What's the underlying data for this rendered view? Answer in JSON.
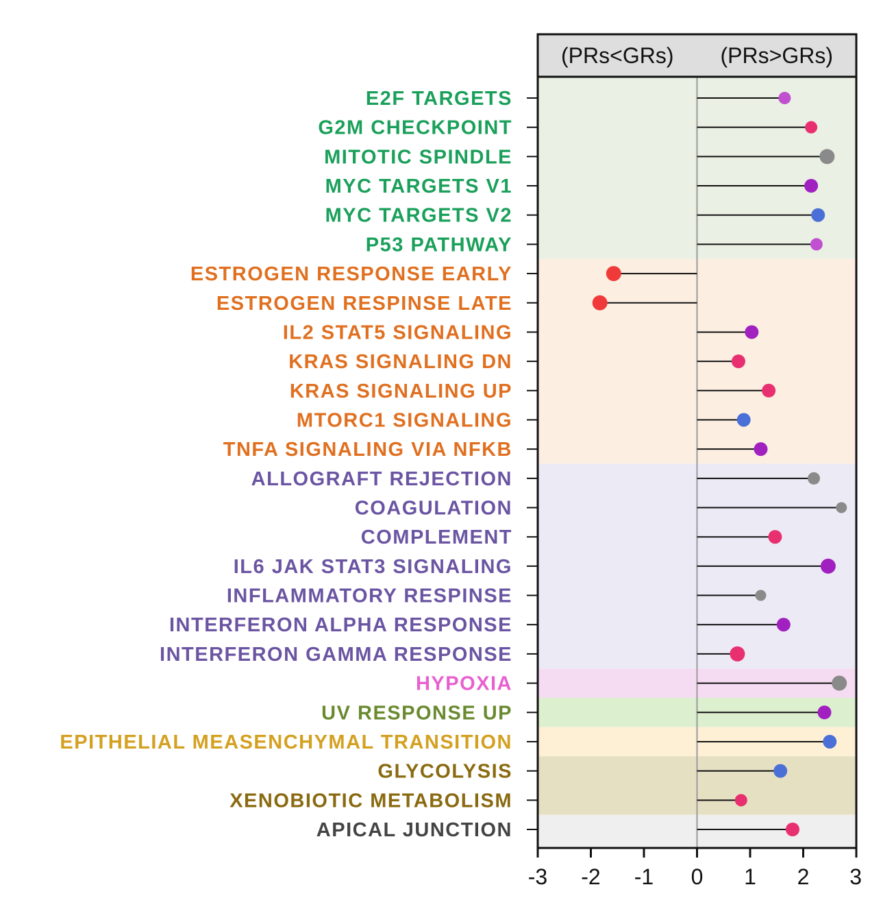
{
  "chart_data": {
    "type": "lollipop",
    "header": {
      "left": "(PRs<GRs)",
      "right": "(PRs>GRs)"
    },
    "xlim": [
      -3,
      3
    ],
    "x_ticks": [
      "-3",
      "-2",
      "-1",
      "0",
      "1",
      "2",
      "3"
    ],
    "groups": [
      {
        "label_color": "#1aa05a",
        "band_color": "#eaf0e3",
        "start": 0,
        "end": 5
      },
      {
        "label_color": "#e07020",
        "band_color": "#fdeee2",
        "start": 6,
        "end": 12
      },
      {
        "label_color": "#6b55a3",
        "band_color": "#ecebf5",
        "start": 13,
        "end": 19
      },
      {
        "label_color": "#e860d0",
        "band_color": "#f6dcf2",
        "start": 20,
        "end": 20
      },
      {
        "label_color": "#6a8a30",
        "band_color": "#dcefcf",
        "start": 21,
        "end": 21
      },
      {
        "label_color": "#d4a020",
        "band_color": "#fdf0d4",
        "start": 22,
        "end": 22
      },
      {
        "label_color": "#8a6a10",
        "band_color": "#e6e0c3",
        "start": 23,
        "end": 24
      },
      {
        "label_color": "#444444",
        "band_color": "#efefef",
        "start": 25,
        "end": 25
      }
    ],
    "categories": [
      "E2F TARGETS",
      "G2M CHECKPOINT",
      "MITOTIC SPINDLE",
      "MYC TARGETS V1",
      "MYC TARGETS V2",
      "P53 PATHWAY",
      "ESTROGEN RESPONSE EARLY",
      "ESTROGEN RESPINSE LATE",
      "IL2 STAT5 SIGNALING",
      "KRAS SIGNALING DN",
      "KRAS SIGNALING UP",
      "MTORC1 SIGNALING",
      "TNFA SIGNALING VIA NFKB",
      "ALLOGRAFT REJECTION",
      "COAGULATION",
      "COMPLEMENT",
      "IL6 JAK STAT3 SIGNALING",
      "INFLAMMATORY RESPINSE",
      "INTERFERON ALPHA RESPONSE",
      "INTERFERON GAMMA RESPONSE",
      "HYPOXIA",
      "UV RESPONSE UP",
      "EPITHELIAL MEASENCHYMAL TRANSITION",
      "GLYCOLYSIS",
      "XENOBIOTIC METABOLISM",
      "APICAL JUNCTION"
    ],
    "values": [
      1.65,
      2.15,
      2.45,
      2.15,
      2.28,
      2.25,
      -1.57,
      -1.83,
      1.03,
      0.78,
      1.35,
      0.88,
      1.2,
      2.2,
      2.72,
      1.47,
      2.47,
      1.2,
      1.63,
      0.76,
      2.68,
      2.4,
      2.5,
      1.57,
      0.83,
      1.8
    ],
    "point_colors": [
      "#c050d0",
      "#e83070",
      "#8a8a8a",
      "#a020c0",
      "#4a70d8",
      "#c050d0",
      "#f03a3a",
      "#f03a3a",
      "#a020c0",
      "#e83070",
      "#e83070",
      "#4a70d8",
      "#a020c0",
      "#8a8a8a",
      "#8a8a8a",
      "#e83070",
      "#a020c0",
      "#8a8a8a",
      "#a020c0",
      "#e83070",
      "#8a8a8a",
      "#a020c0",
      "#4a70d8",
      "#4a70d8",
      "#e83070",
      "#e83070"
    ],
    "point_sizes": [
      9,
      9,
      11,
      10,
      10,
      9,
      11,
      11,
      10,
      10,
      10,
      10,
      10,
      9,
      8,
      10,
      11,
      8,
      10,
      11,
      11,
      10,
      10,
      10,
      9,
      10
    ]
  }
}
